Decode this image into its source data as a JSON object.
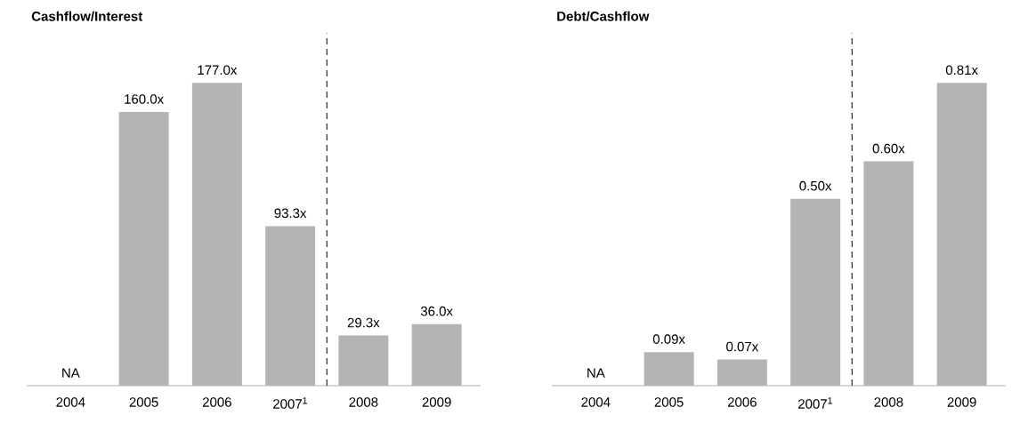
{
  "chart_data": [
    {
      "type": "bar",
      "title": "Cashflow/Interest",
      "categories": [
        "2004",
        "2005",
        "2006",
        "2007$^{1}$",
        "2008",
        "2009"
      ],
      "values": [
        null,
        160.0,
        177.0,
        93.3,
        29.3,
        36.0
      ],
      "value_labels": [
        "NA",
        "160.0x",
        "177.0x",
        "93.3x",
        "29.3x",
        "36.0x"
      ],
      "color": "#b4b4b4"
    },
    {
      "type": "bar",
      "title": "Debt/Cashflow",
      "categories": [
        "2004",
        "2005",
        "2006",
        "2007$^{1}$",
        "2008",
        "2009"
      ],
      "values": [
        null,
        0.09,
        0.07,
        0.5,
        0.6,
        0.81
      ],
      "value_labels": [
        "NA",
        "0.09x",
        "0.07x",
        "0.50x",
        "0.60x",
        "0.81x"
      ],
      "color": "#b4b4b4"
    }
  ]
}
